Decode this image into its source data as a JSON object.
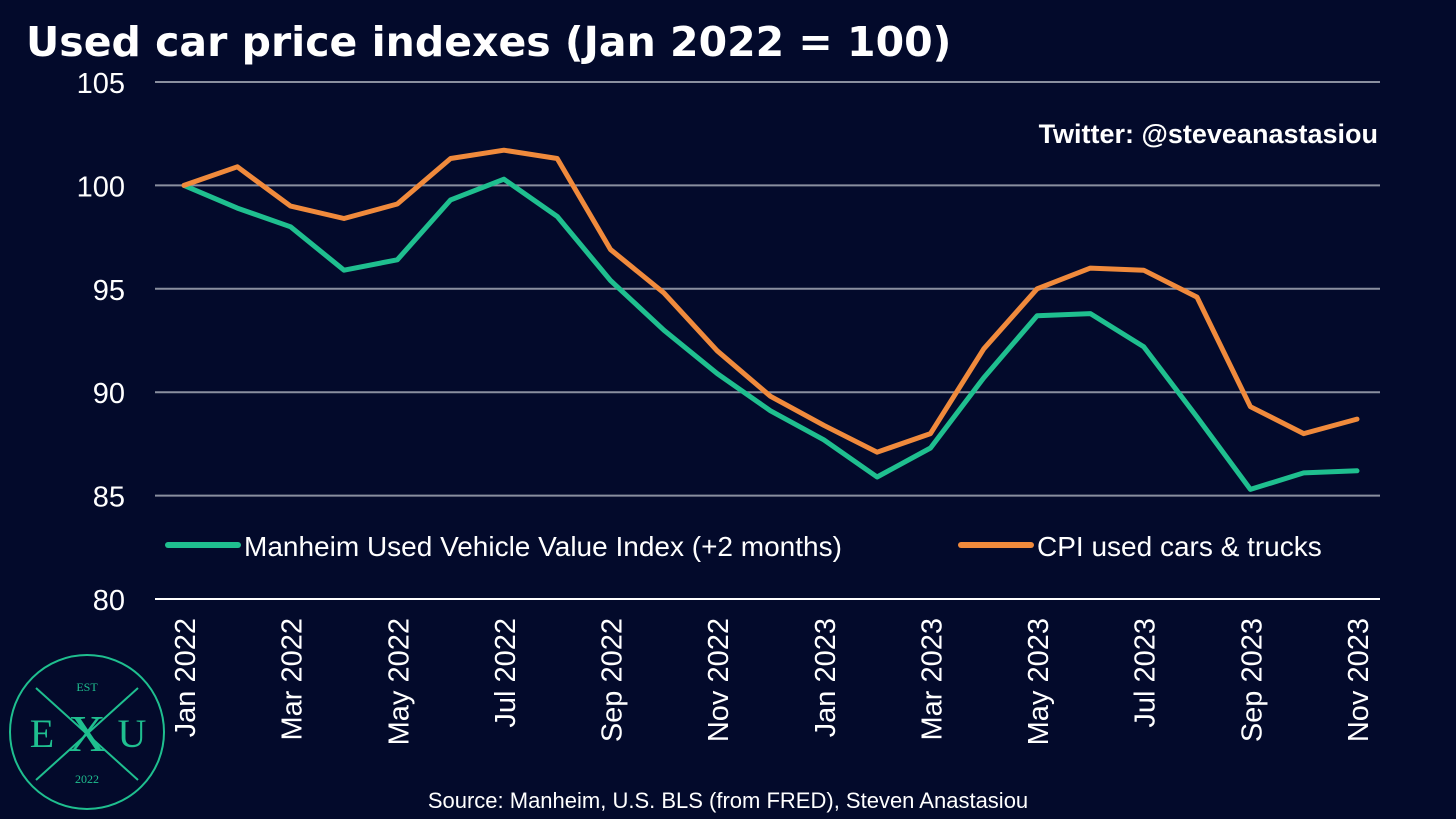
{
  "colors": {
    "background": "#030a2b",
    "manheim": "#1fbf8f",
    "cpi": "#f08a3c",
    "grid": "#8a8f9f",
    "text": "#ffffff",
    "logo": "#1fbf8f"
  },
  "logo": {
    "est": "EST",
    "left": "E",
    "center": "X",
    "right": "U",
    "year": "2022"
  },
  "chart_data": {
    "type": "line",
    "title": "Used car price indexes (Jan 2022 = 100)",
    "watermark": "Twitter: @steveanastasiou",
    "source": "Source: Manheim, U.S. BLS (from FRED), Steven Anastasiou",
    "xlabel": "",
    "ylabel": "",
    "ylim": [
      80,
      105
    ],
    "yticks": [
      80,
      85,
      90,
      95,
      100,
      105
    ],
    "grid": true,
    "legend_position": "bottom-inside",
    "x": [
      "Jan 2022",
      "Feb 2022",
      "Mar 2022",
      "Apr 2022",
      "May 2022",
      "Jun 2022",
      "Jul 2022",
      "Aug 2022",
      "Sep 2022",
      "Oct 2022",
      "Nov 2022",
      "Dec 2022",
      "Jan 2023",
      "Feb 2023",
      "Mar 2023",
      "Apr 2023",
      "May 2023",
      "Jun 2023",
      "Jul 2023",
      "Aug 2023",
      "Sep 2023",
      "Oct 2023",
      "Nov 2023"
    ],
    "xtick_labels": [
      "Jan 2022",
      "Mar 2022",
      "May 2022",
      "Jul 2022",
      "Sep 2022",
      "Nov 2022",
      "Jan 2023",
      "Mar 2023",
      "May 2023",
      "Jul 2023",
      "Sep 2023",
      "Nov 2023"
    ],
    "series": [
      {
        "name": "Manheim Used Vehicle Value Index (+2 months)",
        "color_key": "manheim",
        "values": [
          100.0,
          98.9,
          98.0,
          95.9,
          96.4,
          99.3,
          100.3,
          98.5,
          95.4,
          93.0,
          90.9,
          89.1,
          87.7,
          85.9,
          87.3,
          90.7,
          93.7,
          93.8,
          92.2,
          88.8,
          85.3,
          86.1,
          86.2
        ]
      },
      {
        "name": "CPI used cars & trucks",
        "color_key": "cpi",
        "values": [
          100.0,
          100.9,
          99.0,
          98.4,
          99.1,
          101.3,
          101.7,
          101.3,
          96.9,
          94.8,
          92.0,
          89.8,
          88.4,
          87.1,
          88.0,
          92.1,
          95.0,
          96.0,
          95.9,
          94.6,
          89.3,
          88.0,
          88.7
        ]
      }
    ]
  }
}
